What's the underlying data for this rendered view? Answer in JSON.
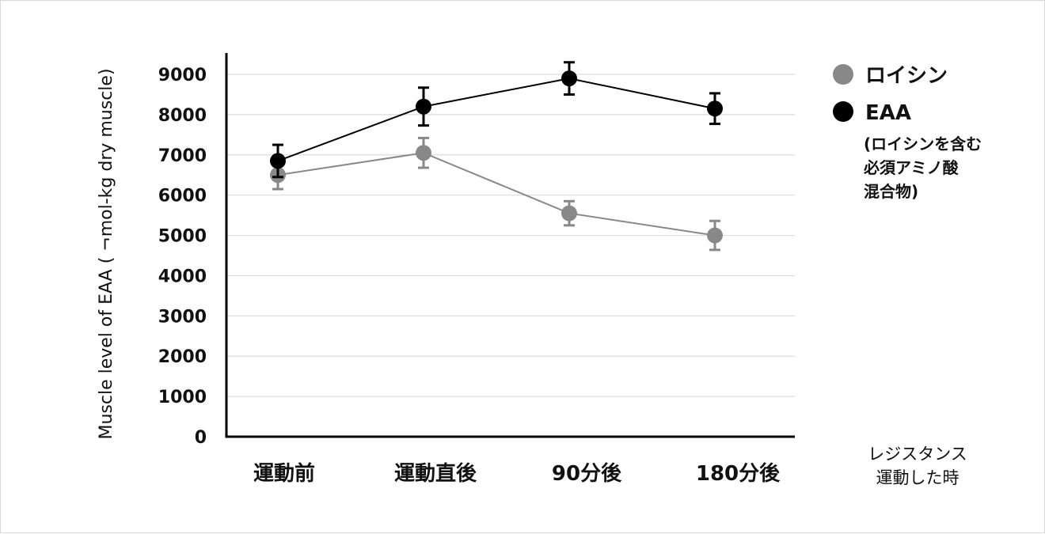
{
  "chart_data": {
    "type": "line",
    "categories": [
      "運動前",
      "運動直後",
      "90分後",
      "180分後"
    ],
    "ylabel": "Muscle level of EAA ( ¬mol-kg dry muscle)",
    "ylim": [
      0,
      9000
    ],
    "yticks": [
      0,
      1000,
      2000,
      3000,
      4000,
      5000,
      6000,
      7000,
      8000,
      9000
    ],
    "grid": true,
    "legend_position": "right",
    "x_note": [
      "レジスタンス",
      "運動した時"
    ],
    "series": [
      {
        "name": "ロイシン",
        "color": "#888888",
        "values": [
          6500,
          7050,
          5550,
          5000
        ],
        "error": [
          350,
          370,
          300,
          360
        ]
      },
      {
        "name": "EAA",
        "note": [
          "(ロイシンを含む",
          "必須アミノ酸",
          "混合物)"
        ],
        "color": "#000000",
        "values": [
          6850,
          8200,
          8900,
          8150
        ],
        "error": [
          400,
          470,
          400,
          380
        ]
      }
    ]
  }
}
